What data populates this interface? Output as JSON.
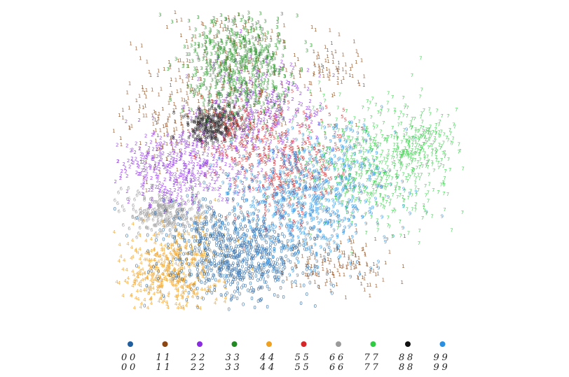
{
  "chart_data": {
    "type": "scatter",
    "title": "",
    "xlabel": "",
    "ylabel": "",
    "grid": false,
    "axes_visible": false,
    "legend_placement": "bottom",
    "series": [
      {
        "id": "0",
        "color": "#1f5fa0",
        "samples": [
          "0",
          "0",
          "0",
          "0"
        ]
      },
      {
        "id": "1",
        "color": "#8b4513",
        "samples": [
          "1",
          "1",
          "1",
          "1"
        ]
      },
      {
        "id": "2",
        "color": "#8a2be2",
        "samples": [
          "2",
          "2",
          "2",
          "2"
        ]
      },
      {
        "id": "3",
        "color": "#1f8a1f",
        "samples": [
          "3",
          "3",
          "3",
          "3"
        ]
      },
      {
        "id": "4",
        "color": "#f0a020",
        "samples": [
          "4",
          "4",
          "4",
          "4"
        ]
      },
      {
        "id": "5",
        "color": "#d62728",
        "samples": [
          "5",
          "5",
          "5",
          "5"
        ]
      },
      {
        "id": "6",
        "color": "#9a9a9a",
        "samples": [
          "6",
          "6",
          "6",
          "6"
        ]
      },
      {
        "id": "7",
        "color": "#2ecc40",
        "samples": [
          "7",
          "7",
          "7",
          "7"
        ]
      },
      {
        "id": "8",
        "color": "#111111",
        "samples": [
          "8",
          "8",
          "8",
          "8"
        ]
      },
      {
        "id": "9",
        "color": "#2a8fe0",
        "samples": [
          "9",
          "9",
          "9",
          "9"
        ]
      }
    ]
  }
}
